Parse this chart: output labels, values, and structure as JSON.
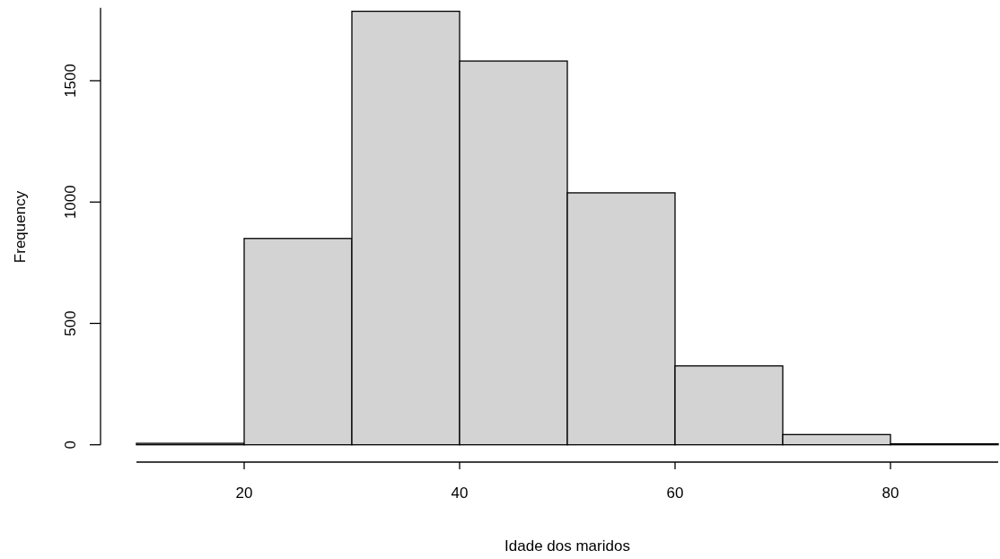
{
  "chart_data": {
    "type": "histogram",
    "xlabel": "Idade dos maridos",
    "ylabel": "Frequency",
    "bins": [
      10,
      20,
      30,
      40,
      50,
      60,
      70,
      80,
      90
    ],
    "values": [
      6,
      850,
      1786,
      1581,
      1038,
      325,
      42,
      4
    ],
    "color": "#d3d3d3",
    "xlim": [
      10,
      90
    ],
    "xticks": [
      20,
      40,
      60,
      80
    ],
    "ylim": [
      0,
      1800
    ],
    "yticks": [
      0,
      500,
      1000,
      1500
    ],
    "grid": false
  }
}
